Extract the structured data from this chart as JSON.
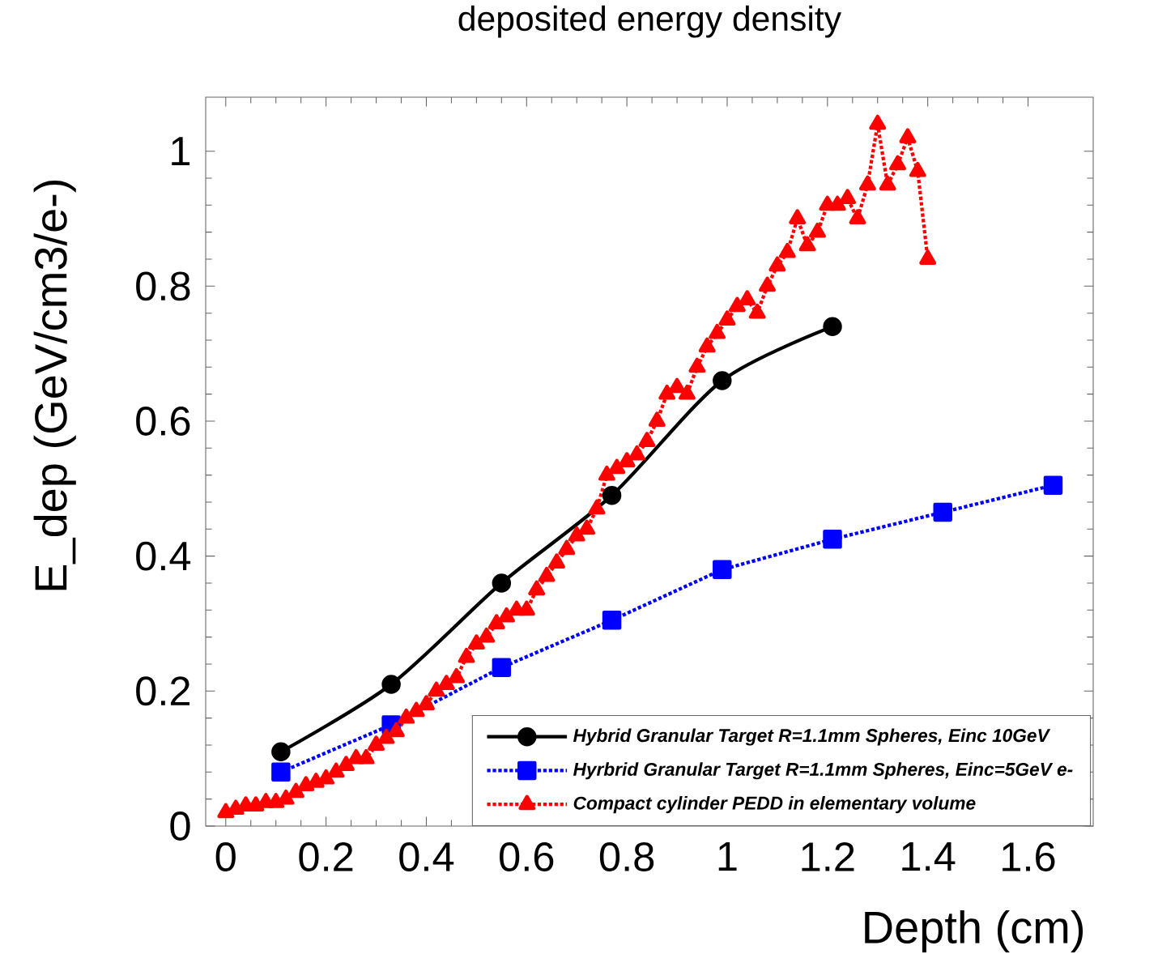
{
  "chart_data": {
    "type": "line",
    "title": "deposited energy density",
    "xlabel": "Depth (cm)",
    "ylabel": "E_dep (GeV/cm3/e-)",
    "xlim": [
      -0.04,
      1.73
    ],
    "ylim": [
      0,
      1.08
    ],
    "xticks": [
      0,
      0.2,
      0.4,
      0.6,
      0.8,
      1,
      1.2,
      1.4,
      1.6
    ],
    "yticks": [
      0,
      0.2,
      0.4,
      0.6,
      0.8,
      1
    ],
    "grid": false,
    "legend": "bottom right",
    "series": [
      {
        "name": "Hybrid Granular Target R=1.1mm Spheres, Einc 10GeV",
        "color": "#000000",
        "marker": "circle",
        "line_style": "solid",
        "x": [
          0.11,
          0.33,
          0.55,
          0.77,
          0.99,
          1.21
        ],
        "values": [
          0.11,
          0.21,
          0.36,
          0.49,
          0.66,
          0.74
        ]
      },
      {
        "name": "Hyrbrid Granular Target R=1.1mm Spheres, Einc=5GeV e-",
        "color": "#0000ff",
        "marker": "square",
        "line_style": "dotted",
        "x": [
          0.11,
          0.33,
          0.55,
          0.77,
          0.99,
          1.21,
          1.43,
          1.65
        ],
        "values": [
          0.08,
          0.15,
          0.235,
          0.305,
          0.38,
          0.425,
          0.465,
          0.505
        ]
      },
      {
        "name": "Compact cylinder PEDD in elementary volume",
        "color": "#ff0000",
        "marker": "triangle",
        "line_style": "dotted",
        "x": [
          0.0,
          0.02,
          0.04,
          0.06,
          0.08,
          0.1,
          0.12,
          0.14,
          0.16,
          0.18,
          0.2,
          0.22,
          0.24,
          0.26,
          0.28,
          0.3,
          0.32,
          0.34,
          0.36,
          0.38,
          0.4,
          0.42,
          0.44,
          0.46,
          0.48,
          0.5,
          0.52,
          0.54,
          0.56,
          0.58,
          0.6,
          0.62,
          0.64,
          0.66,
          0.68,
          0.7,
          0.72,
          0.74,
          0.76,
          0.78,
          0.8,
          0.82,
          0.84,
          0.86,
          0.88,
          0.9,
          0.92,
          0.94,
          0.96,
          0.98,
          1.0,
          1.02,
          1.04,
          1.06,
          1.08,
          1.1,
          1.12,
          1.14,
          1.16,
          1.18,
          1.2,
          1.22,
          1.24,
          1.26,
          1.28,
          1.3,
          1.32,
          1.34,
          1.36,
          1.38,
          1.4
        ],
        "values": [
          0.02,
          0.025,
          0.03,
          0.03,
          0.035,
          0.035,
          0.04,
          0.05,
          0.06,
          0.065,
          0.07,
          0.08,
          0.09,
          0.1,
          0.1,
          0.12,
          0.13,
          0.14,
          0.16,
          0.17,
          0.18,
          0.2,
          0.21,
          0.22,
          0.25,
          0.27,
          0.28,
          0.3,
          0.31,
          0.32,
          0.32,
          0.35,
          0.37,
          0.39,
          0.41,
          0.43,
          0.44,
          0.47,
          0.52,
          0.53,
          0.54,
          0.55,
          0.57,
          0.6,
          0.64,
          0.65,
          0.64,
          0.68,
          0.71,
          0.73,
          0.75,
          0.77,
          0.78,
          0.76,
          0.8,
          0.83,
          0.85,
          0.9,
          0.86,
          0.88,
          0.92,
          0.92,
          0.93,
          0.9,
          0.95,
          1.04,
          0.95,
          0.98,
          1.02,
          0.97,
          0.84
        ]
      }
    ]
  }
}
